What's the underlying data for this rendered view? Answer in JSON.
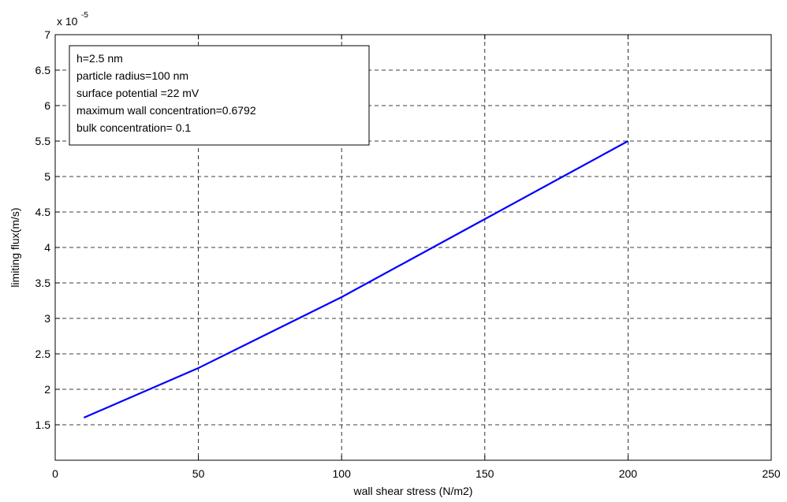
{
  "chart_data": {
    "type": "line",
    "xlabel": "wall shear stress (N/m2)",
    "ylabel": "limiting flux(m/s)",
    "xlim": [
      0,
      250
    ],
    "ylim": [
      1,
      7
    ],
    "x_ticks": [
      "0",
      "50",
      "100",
      "150",
      "200",
      "250"
    ],
    "x_tick_values": [
      0,
      50,
      100,
      150,
      200,
      250
    ],
    "y_ticks": [
      "1.5",
      "2",
      "2.5",
      "3",
      "3.5",
      "4",
      "4.5",
      "5",
      "5.5",
      "6",
      "6.5",
      "7"
    ],
    "y_tick_values": [
      1.5,
      2,
      2.5,
      3,
      3.5,
      4,
      4.5,
      5,
      5.5,
      6,
      6.5,
      7
    ],
    "y_multiplier_base": "x 10",
    "y_multiplier_exponent": "-5",
    "grid": true,
    "series": [
      {
        "color": "#0000ff",
        "x": [
          10,
          30,
          50,
          75,
          100,
          125,
          150,
          175,
          200
        ],
        "y": [
          1.6,
          1.95,
          2.3,
          2.8,
          3.3,
          3.85,
          4.4,
          4.95,
          5.5
        ]
      }
    ],
    "annotation": {
      "lines": [
        "h=2.5 nm",
        "particle radius=100 nm",
        "surface potential =22 mV",
        "maximum wall concentration=0.6792",
        "bulk concentration= 0.1"
      ]
    }
  }
}
